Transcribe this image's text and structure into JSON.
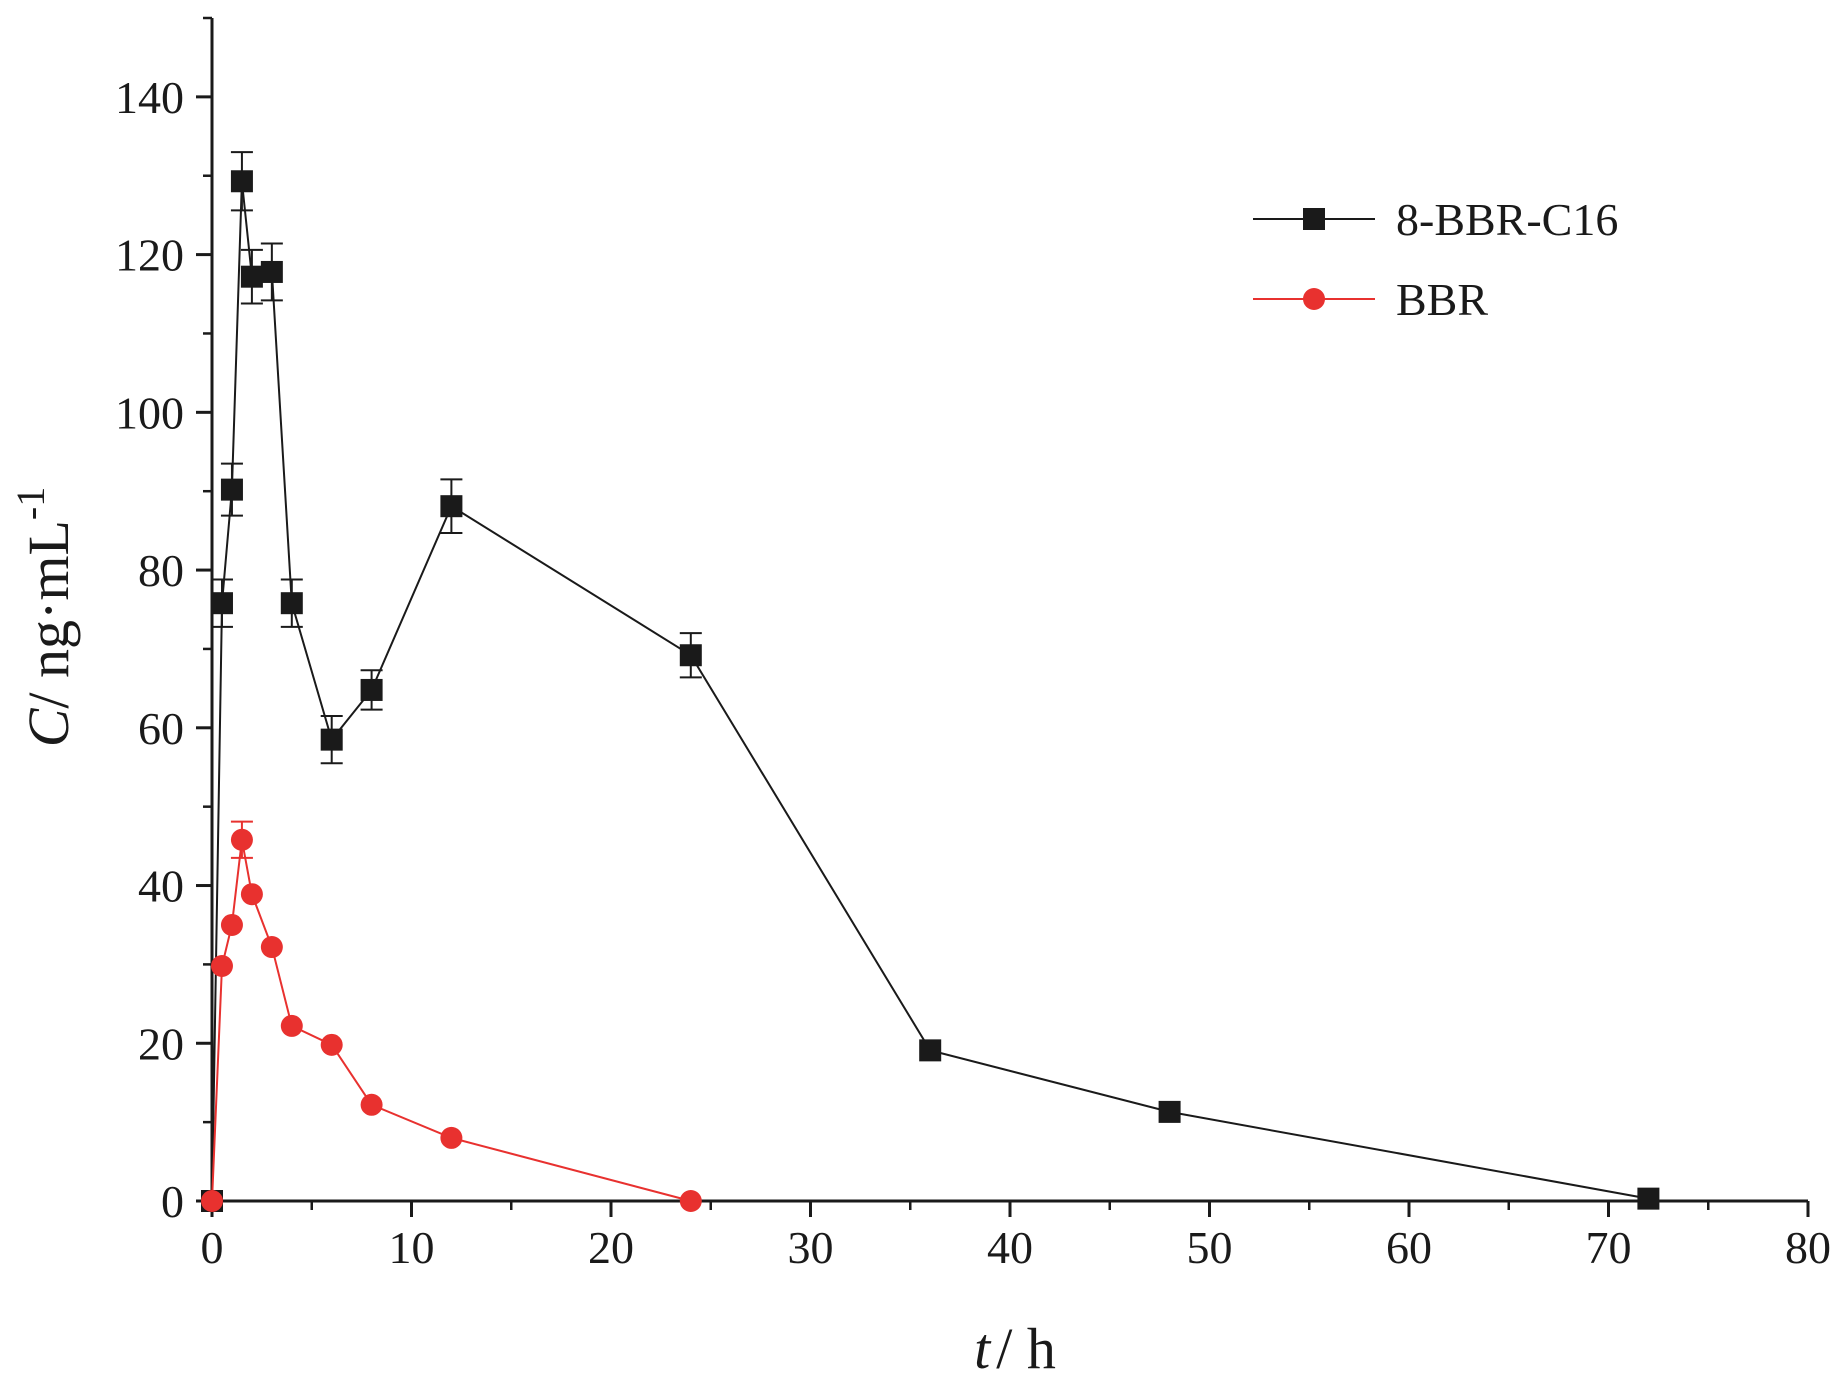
{
  "chart_data": {
    "type": "line",
    "xlabel": {
      "italic": "t",
      "rest": "/ h"
    },
    "ylabel": {
      "italic": "C",
      "rest": "/ ng·mL",
      "superscript": "-1"
    },
    "xlim": [
      0,
      80
    ],
    "ylim": [
      0,
      150
    ],
    "xticks": [
      0,
      10,
      20,
      30,
      40,
      50,
      60,
      70,
      80
    ],
    "yticks": [
      0,
      20,
      40,
      60,
      80,
      100,
      120,
      140
    ],
    "xtick_labels": [
      "0",
      "10",
      "20",
      "30",
      "40",
      "50",
      "60",
      "70",
      "80"
    ],
    "ytick_labels": [
      "0",
      "20",
      "40",
      "60",
      "80",
      "100",
      "120",
      "140"
    ],
    "grid": false,
    "legend_position": "top-right",
    "series": [
      {
        "name": "8-BBR-C16",
        "color": "#1a1a1a",
        "marker": "square",
        "x": [
          0,
          0.5,
          1,
          1.5,
          2,
          3,
          4,
          6,
          8,
          12,
          24,
          36,
          48,
          72
        ],
        "y": [
          0,
          75.8,
          90.2,
          129.3,
          117.2,
          117.8,
          75.8,
          58.5,
          64.8,
          88.1,
          69.2,
          19.1,
          11.3,
          0.3
        ],
        "err": [
          0,
          3.0,
          3.3,
          3.7,
          3.4,
          3.6,
          3.0,
          3.0,
          2.5,
          3.4,
          2.8,
          0,
          0,
          0
        ]
      },
      {
        "name": "BBR",
        "color": "#e8312f",
        "marker": "circle",
        "x": [
          0,
          0.5,
          1,
          1.5,
          2,
          3,
          4,
          6,
          8,
          12,
          24
        ],
        "y": [
          0,
          29.8,
          35.0,
          45.8,
          38.9,
          32.2,
          22.2,
          19.8,
          12.2,
          8.0,
          0
        ],
        "err": [
          0,
          0,
          0,
          2.3,
          0,
          0,
          0,
          0,
          0,
          0,
          0
        ]
      }
    ]
  }
}
